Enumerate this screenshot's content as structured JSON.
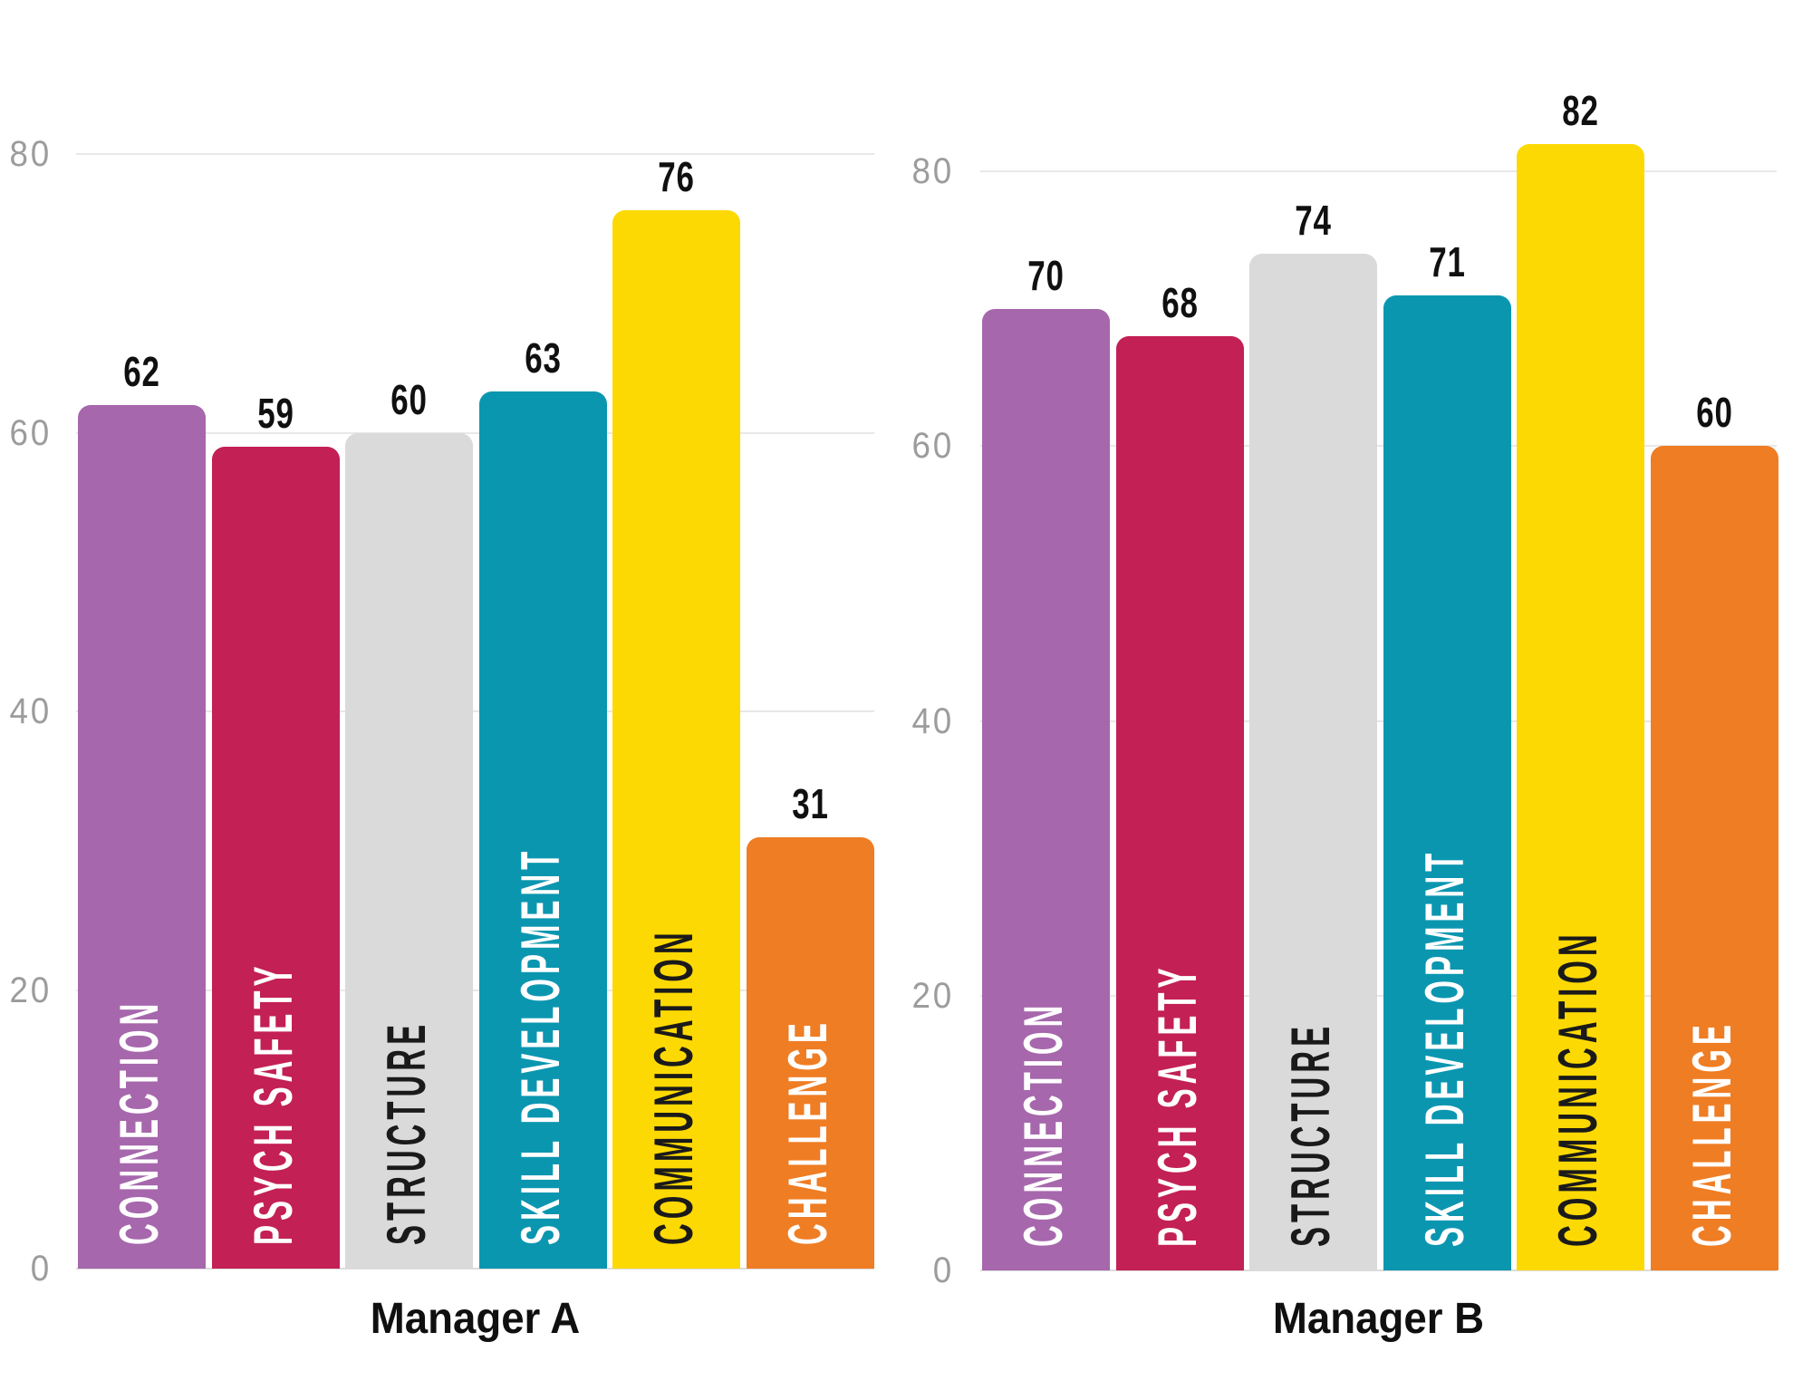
{
  "chart_data": [
    {
      "type": "bar",
      "title": "Manager A",
      "categories": [
        "CONNECTION",
        "PSYCH SAFETY",
        "STRUCTURE",
        "SKILL DEVELOPMENT",
        "COMMUNICATION",
        "CHALLENGE"
      ],
      "values": [
        62,
        59,
        60,
        63,
        76,
        31
      ],
      "xlabel": "Manager A",
      "ylabel": "",
      "ylim": [
        0,
        85
      ],
      "yticks": [
        0,
        20,
        40,
        60,
        80
      ],
      "grid": true,
      "legend": "none",
      "bar_colors": [
        "#A667AC",
        "#C32055",
        "#DADADA",
        "#0B96B0",
        "#FDD903",
        "#EF7D24"
      ],
      "category_label_colors": [
        "#FFFFFF",
        "#FFFFFF",
        "#1A1A1A",
        "#FFFFFF",
        "#1A1A1A",
        "#FFFFFF"
      ]
    },
    {
      "type": "bar",
      "title": "Manager B",
      "categories": [
        "CONNECTION",
        "PSYCH SAFETY",
        "STRUCTURE",
        "SKILL DEVELOPMENT",
        "COMMUNICATION",
        "CHALLENGE"
      ],
      "values": [
        70,
        68,
        74,
        71,
        82,
        60
      ],
      "xlabel": "Manager B",
      "ylabel": "",
      "ylim": [
        0,
        85
      ],
      "yticks": [
        0,
        20,
        40,
        60,
        80
      ],
      "grid": true,
      "legend": "none",
      "bar_colors": [
        "#A667AC",
        "#C32055",
        "#DADADA",
        "#0B96B0",
        "#FDD903",
        "#EF7D24"
      ],
      "category_label_colors": [
        "#FFFFFF",
        "#FFFFFF",
        "#1A1A1A",
        "#FFFFFF",
        "#1A1A1A",
        "#FFFFFF"
      ]
    }
  ],
  "colors": {
    "background": "#FFFFFF",
    "gridline": "#E8E8E8",
    "baseline": "#DCDCDC",
    "tick_label": "#9C9C9C",
    "value_label": "#101010",
    "title": "#101010"
  }
}
